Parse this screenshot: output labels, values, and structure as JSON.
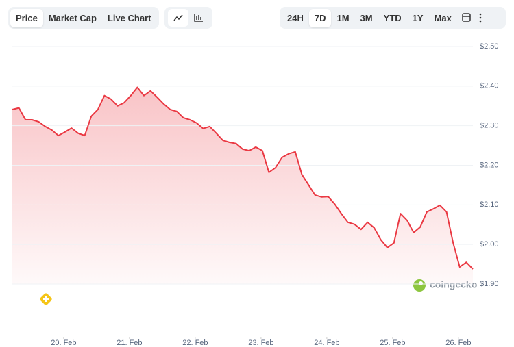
{
  "toolbar": {
    "tabs": [
      "Price",
      "Market Cap",
      "Live Chart"
    ],
    "active_tab": 0,
    "ranges": [
      "24H",
      "7D",
      "1M",
      "3M",
      "YTD",
      "1Y",
      "Max"
    ],
    "active_range": 1
  },
  "chart_data": {
    "type": "line",
    "watermark": "coingecko",
    "color": "#ea3943",
    "grid": true,
    "fill": true,
    "x": [
      19.22,
      19.32,
      19.42,
      19.52,
      19.62,
      19.72,
      19.82,
      19.92,
      20.02,
      20.12,
      20.22,
      20.32,
      20.42,
      20.52,
      20.62,
      20.72,
      20.82,
      20.92,
      21.02,
      21.12,
      21.22,
      21.32,
      21.42,
      21.52,
      21.62,
      21.72,
      21.82,
      21.92,
      22.02,
      22.12,
      22.22,
      22.32,
      22.42,
      22.52,
      22.62,
      22.72,
      22.82,
      22.92,
      23.02,
      23.12,
      23.22,
      23.32,
      23.42,
      23.52,
      23.62,
      23.72,
      23.82,
      23.92,
      24.02,
      24.12,
      24.22,
      24.32,
      24.42,
      24.52,
      24.62,
      24.72,
      24.82,
      24.92,
      25.02,
      25.12,
      25.22,
      25.32,
      25.42,
      25.52,
      25.62,
      25.72,
      25.82,
      25.92,
      26.02,
      26.12,
      26.22
    ],
    "values": [
      2.341,
      2.345,
      2.315,
      2.315,
      2.31,
      2.298,
      2.289,
      2.275,
      2.284,
      2.294,
      2.281,
      2.275,
      2.324,
      2.341,
      2.376,
      2.367,
      2.35,
      2.358,
      2.376,
      2.397,
      2.376,
      2.388,
      2.372,
      2.355,
      2.341,
      2.336,
      2.32,
      2.315,
      2.307,
      2.293,
      2.298,
      2.281,
      2.263,
      2.258,
      2.255,
      2.241,
      2.237,
      2.246,
      2.237,
      2.182,
      2.194,
      2.22,
      2.229,
      2.234,
      2.177,
      2.151,
      2.125,
      2.12,
      2.121,
      2.102,
      2.078,
      2.056,
      2.051,
      2.038,
      2.056,
      2.042,
      2.012,
      1.992,
      2.004,
      2.078,
      2.061,
      2.03,
      2.044,
      2.082,
      2.09,
      2.099,
      2.082,
      2.004,
      1.943,
      1.955,
      1.938
    ],
    "xlim": [
      19.22,
      26.22
    ],
    "xticks": [
      {
        "value": 20,
        "label": "20. Feb"
      },
      {
        "value": 21,
        "label": "21. Feb"
      },
      {
        "value": 22,
        "label": "22. Feb"
      },
      {
        "value": 23,
        "label": "23. Feb"
      },
      {
        "value": 24,
        "label": "24. Feb"
      },
      {
        "value": 25,
        "label": "25. Feb"
      },
      {
        "value": 26,
        "label": "26. Feb"
      }
    ],
    "ylim": [
      1.9,
      2.5
    ],
    "yticks": [
      {
        "value": 1.9,
        "label": "$1.90"
      },
      {
        "value": 2.0,
        "label": "$2.00"
      },
      {
        "value": 2.1,
        "label": "$2.10"
      },
      {
        "value": 2.2,
        "label": "$2.20"
      },
      {
        "value": 2.3,
        "label": "$2.30"
      },
      {
        "value": 2.4,
        "label": "$2.40"
      },
      {
        "value": 2.5,
        "label": "$2.50"
      }
    ]
  }
}
